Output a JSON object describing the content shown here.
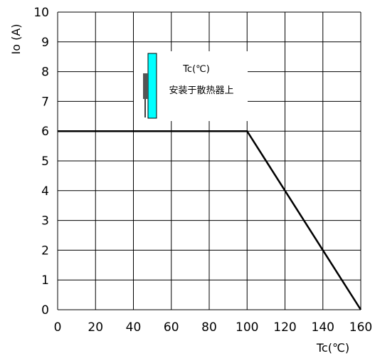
{
  "chart_data": {
    "type": "line",
    "xlabel": "Tc(℃)",
    "ylabel": "Io (A)",
    "xlim": [
      0,
      160
    ],
    "ylim": [
      0,
      10
    ],
    "x_ticks": [
      0,
      20,
      40,
      60,
      80,
      100,
      120,
      140,
      160
    ],
    "y_ticks": [
      0,
      1,
      2,
      3,
      4,
      5,
      6,
      7,
      8,
      9,
      10
    ],
    "grid": true,
    "series": [
      {
        "x": [
          0,
          100,
          160
        ],
        "y": [
          6,
          6,
          0
        ]
      }
    ],
    "annotation": {
      "line1": "Tc(℃)",
      "line2": "安装于散热器上"
    },
    "colors": {
      "line": "#000000",
      "grid": "#000000",
      "heatsink": "#00ffff",
      "component": "#555555"
    }
  }
}
